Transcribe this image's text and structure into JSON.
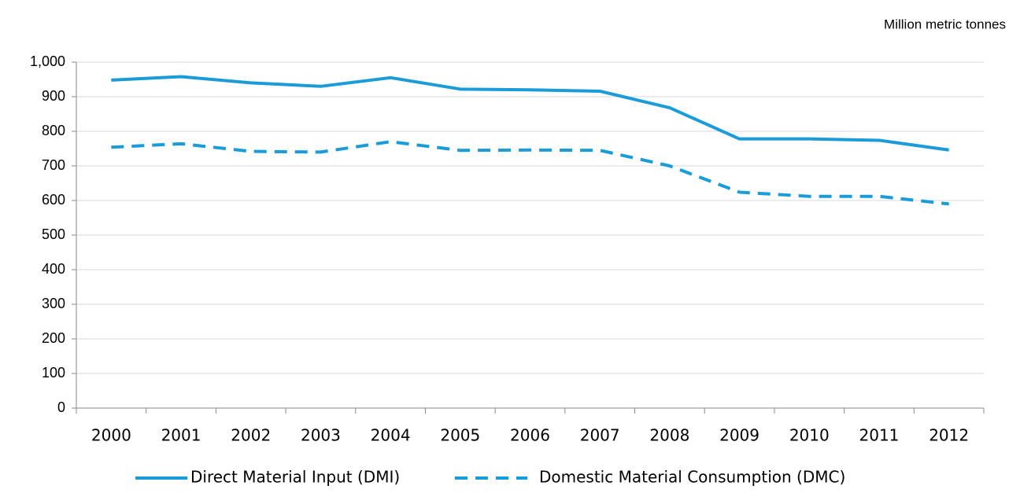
{
  "chart_data": {
    "type": "line",
    "unit_label": "Million metric tonnes",
    "categories": [
      "2000",
      "2001",
      "2002",
      "2003",
      "2004",
      "2005",
      "2006",
      "2007",
      "2008",
      "2009",
      "2010",
      "2011",
      "2012"
    ],
    "series": [
      {
        "name": "Direct Material Input (DMI)",
        "color": "#1b9bd7",
        "line_style": "solid",
        "values": [
          948,
          958,
          940,
          930,
          955,
          922,
          920,
          916,
          868,
          778,
          778,
          774,
          746
        ]
      },
      {
        "name": "Domestic Material Consumption (DMC)",
        "color": "#1b9bd7",
        "line_style": "dashed",
        "values": [
          754,
          764,
          742,
          740,
          770,
          745,
          746,
          745,
          700,
          624,
          612,
          612,
          590
        ]
      }
    ],
    "ylim": [
      0,
      1000
    ],
    "yticks": [
      0,
      100,
      200,
      300,
      400,
      500,
      600,
      700,
      800,
      900,
      {
        "value": 1000,
        "label": "1,000"
      }
    ],
    "grid": true
  }
}
